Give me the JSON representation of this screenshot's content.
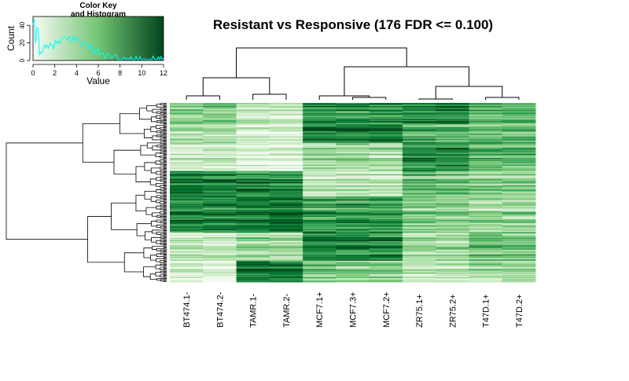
{
  "chart_data": [
    {
      "type": "heatmap",
      "title": "Resistant vs Responsive (176 FDR <= 0.100)",
      "columns": [
        "BT474.1-",
        "BT474.2-",
        "TAMR.1-",
        "TAMR.2-",
        "MCF7.1+",
        "MCF7.3+",
        "MCF7.2+",
        "ZR75.1+",
        "ZR75.2+",
        "T47D.1+",
        "T47D.2+"
      ],
      "n_rows": 176,
      "value_range": [
        0,
        12
      ],
      "colormap": [
        "#f7fcf5",
        "#00441b"
      ],
      "row_dendrogram": true,
      "column_dendrogram": true
    },
    {
      "type": "histogram",
      "title": "Color Key\nand Histogram",
      "title_lines": [
        "Color Key",
        "and Histogram"
      ],
      "xlabel": "Value",
      "ylabel": "Count",
      "x_ticks": [
        "0",
        "2",
        "4",
        "6",
        "8",
        "10",
        "12"
      ],
      "y_ticks": [
        "0",
        "20",
        "40"
      ],
      "xlim": [
        0,
        12
      ],
      "ylim": [
        0,
        50
      ],
      "line_color": "#00ffff"
    }
  ]
}
